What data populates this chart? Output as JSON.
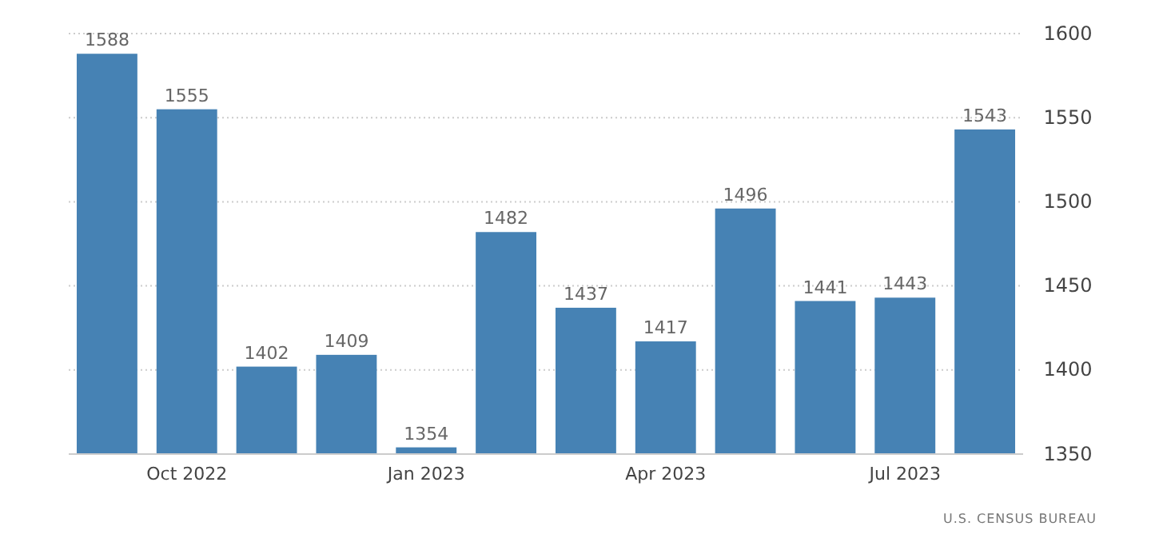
{
  "chart_data": {
    "type": "bar",
    "categories": [
      null,
      "Oct 2022",
      null,
      null,
      "Jan 2023",
      null,
      null,
      "Apr 2023",
      null,
      null,
      "Jul 2023",
      null
    ],
    "values": [
      1588,
      1555,
      1402,
      1409,
      1354,
      1482,
      1437,
      1417,
      1496,
      1441,
      1443,
      1543
    ],
    "color": "#4682b4",
    "ylim": [
      1350,
      1600
    ],
    "yticks": [
      1350,
      1400,
      1450,
      1500,
      1550,
      1600
    ],
    "grid": "y",
    "data_labels": true,
    "annotations": [
      "U.S. CENSUS BUREAU"
    ]
  }
}
